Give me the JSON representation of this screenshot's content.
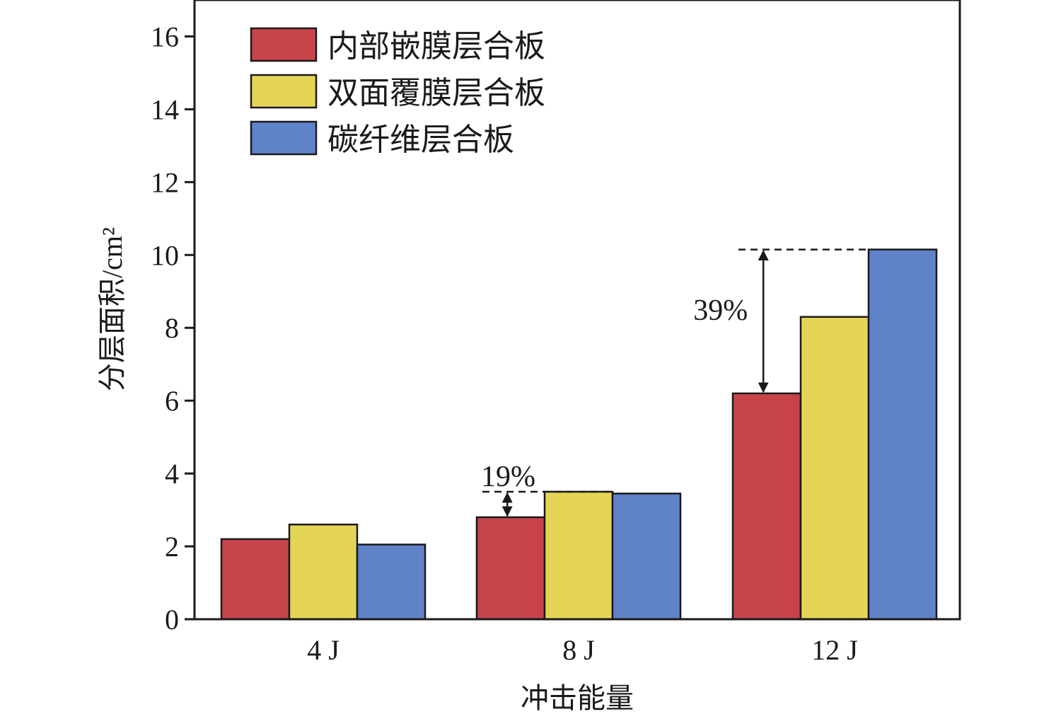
{
  "chart_data": {
    "type": "bar",
    "title": "",
    "xlabel": "冲击能量",
    "ylabel": "分层面积/cm²",
    "ylim": [
      0,
      17
    ],
    "yticks": [
      0,
      2,
      4,
      6,
      8,
      10,
      12,
      14,
      16
    ],
    "categories": [
      "4 J",
      "8 J",
      "12 J"
    ],
    "series": [
      {
        "name": "内部嵌膜层合板",
        "color": "#c7434a",
        "values": [
          2.2,
          2.8,
          6.2
        ]
      },
      {
        "name": "双面覆膜层合板",
        "color": "#e5d556",
        "values": [
          2.6,
          3.5,
          8.3
        ]
      },
      {
        "name": "碳纤维层合板",
        "color": "#5f82c8",
        "values": [
          2.05,
          3.45,
          10.15
        ]
      }
    ],
    "legend_position": "top-left",
    "grid": false,
    "annotations": [
      {
        "text": "19%",
        "category": "8 J",
        "from_value": 2.8,
        "to_value": 3.5
      },
      {
        "text": "39%",
        "category": "12 J",
        "from_value": 6.2,
        "to_value": 10.15
      }
    ]
  }
}
